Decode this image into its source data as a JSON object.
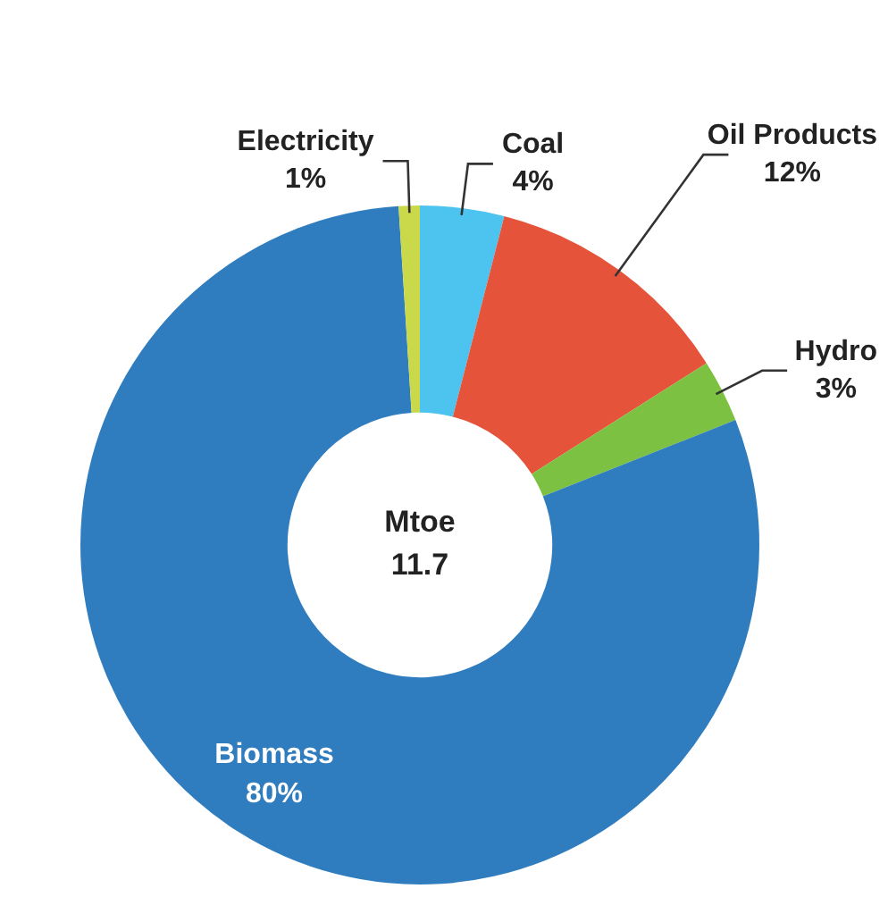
{
  "chart_data": {
    "type": "donut",
    "categories": [
      "Coal",
      "Oil Products",
      "Hydro",
      "Biomass",
      "Electricity"
    ],
    "values": [
      4,
      12,
      3,
      80,
      1
    ],
    "colors": [
      "#4dc3ef",
      "#e4533a",
      "#7cc142",
      "#2f7dbf",
      "#c9d94a"
    ],
    "value_labels": [
      "4%",
      "12%",
      "3%",
      "80%",
      "1%"
    ],
    "annotations": [
      "Mtoe",
      "11.7"
    ],
    "legend": false
  }
}
